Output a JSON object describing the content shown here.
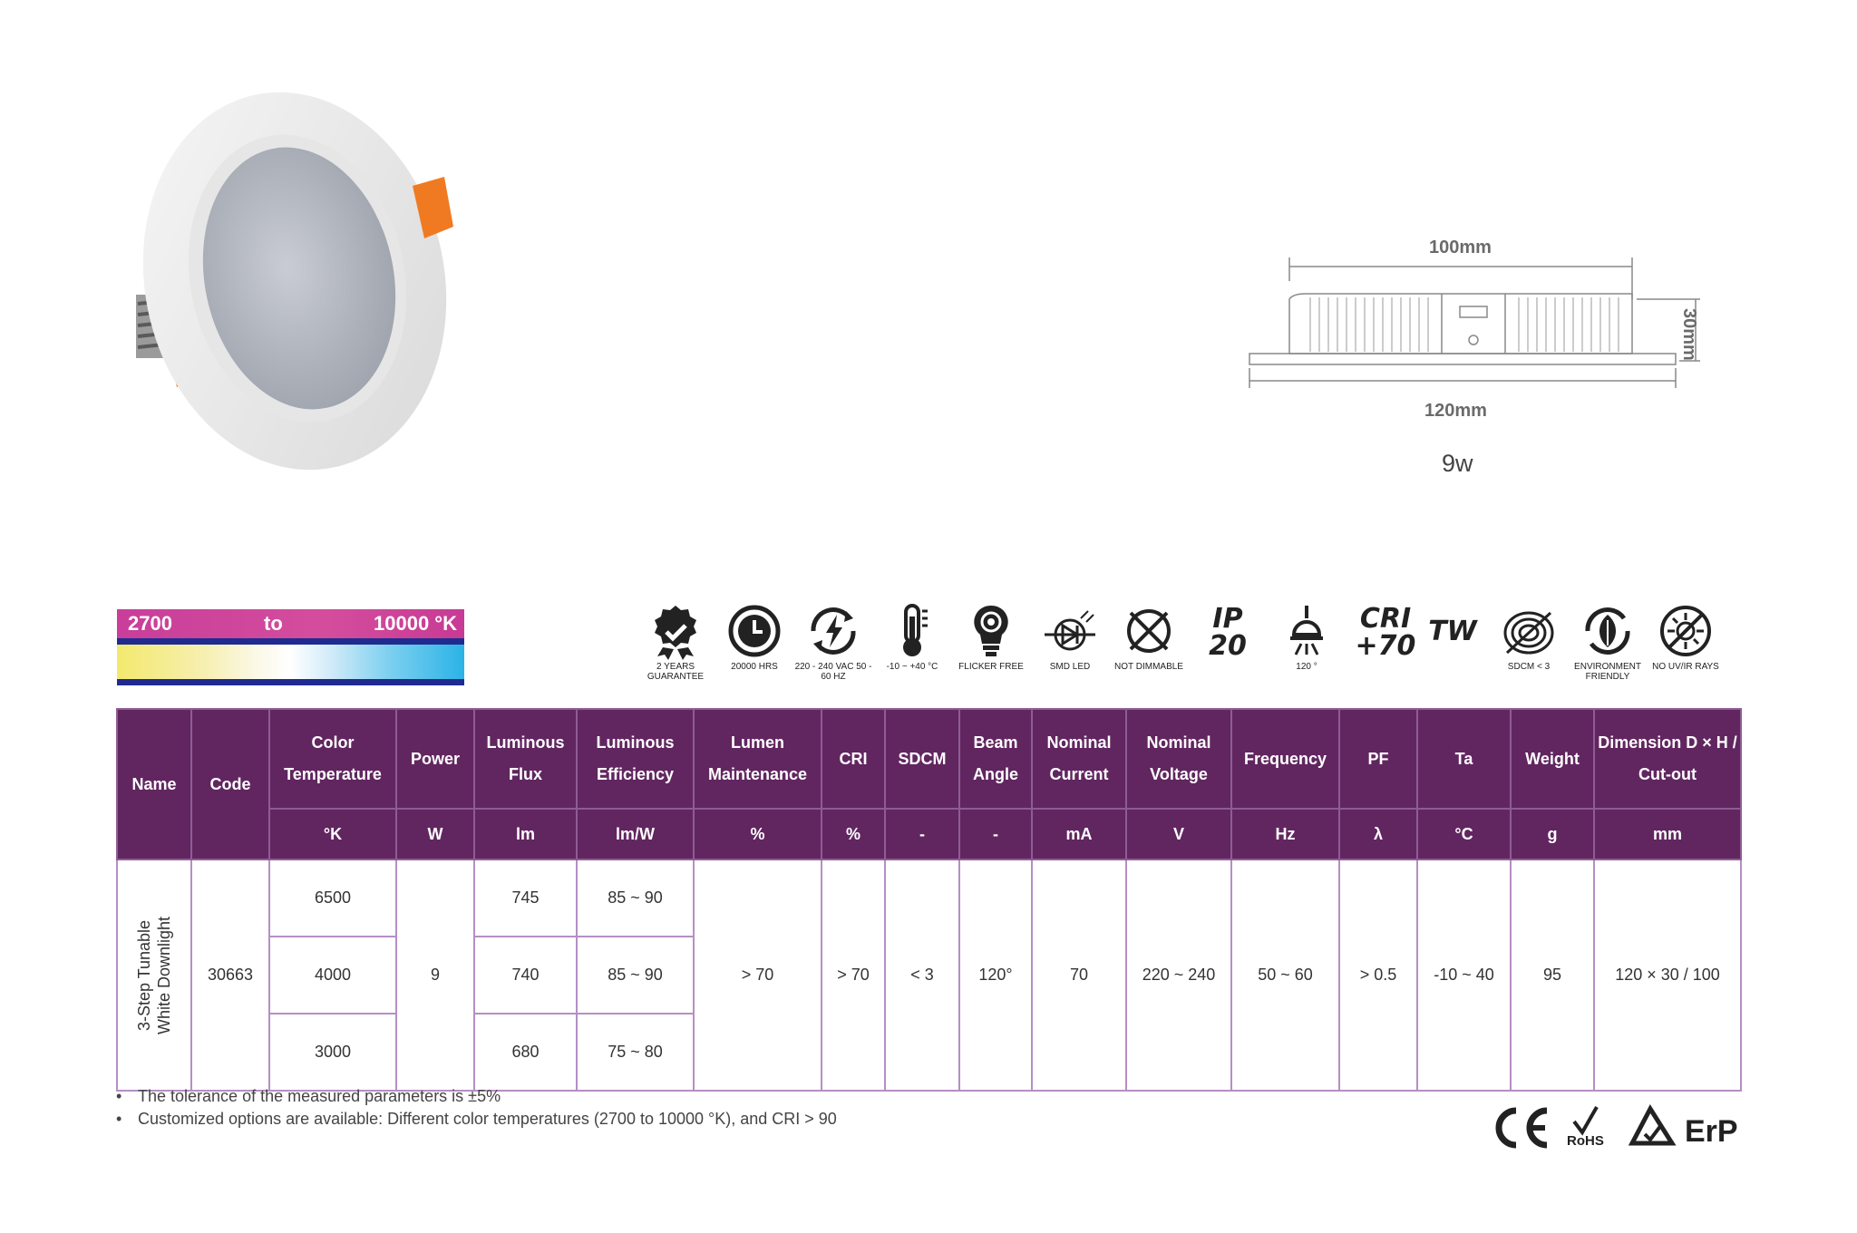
{
  "drawing": {
    "width_top": "100mm",
    "height": "30mm",
    "width_bottom": "120mm",
    "wattage": "9w"
  },
  "color_temp_bar": {
    "low": "2700",
    "to": "to",
    "high": "10000 °K"
  },
  "features": [
    {
      "icon": "award-badge-icon",
      "caption": "2 YEARS GUARANTEE"
    },
    {
      "icon": "clock-icon",
      "caption": "20000 Hrs"
    },
    {
      "icon": "power-cycle-icon",
      "caption": "220 - 240 VAC 50 - 60 Hz"
    },
    {
      "icon": "thermometer-icon",
      "caption": "-10 ~ +40 °c"
    },
    {
      "icon": "bulb-icon",
      "caption": "FLICKER FREE"
    },
    {
      "icon": "led-diode-icon",
      "caption": "SMD LED"
    },
    {
      "icon": "not-dimmable-icon",
      "caption": "NOT DIMMABLE"
    },
    {
      "icon": "ip-rating-icon",
      "caption": "IP 20"
    },
    {
      "icon": "beam-angle-icon",
      "caption": "120 °"
    },
    {
      "icon": "cri-icon",
      "caption": "CRI +70"
    },
    {
      "icon": "tunable-white-icon",
      "caption": "TW"
    },
    {
      "icon": "sdcm-icon",
      "caption": "SDCM < 3"
    },
    {
      "icon": "eco-leaf-icon",
      "caption": "ENVIRONMENT FRIENDLY"
    },
    {
      "icon": "no-uv-icon",
      "caption": "NO UV/IR RAYS"
    }
  ],
  "table": {
    "headers": [
      "Name",
      "Code",
      "Color Temperature",
      "Power",
      "Luminous Flux",
      "Luminous Efficiency",
      "Lumen Maintenance",
      "CRI",
      "SDCM",
      "Beam Angle",
      "Nominal Current",
      "Nominal Voltage",
      "Frequency",
      "PF",
      "Ta",
      "Weight",
      "Dimension D × H / Cut-out"
    ],
    "units": [
      "°K",
      "W",
      "lm",
      "lm/W",
      "%",
      "%",
      "-",
      "-",
      "mA",
      "V",
      "Hz",
      "λ",
      "°C",
      "g",
      "mm"
    ],
    "name": "3-Step Tunable White Downlight",
    "code": "30663",
    "rows": [
      {
        "cct": "6500",
        "flux": "745",
        "eff": "85 ~ 90"
      },
      {
        "cct": "4000",
        "flux": "740",
        "eff": "85 ~ 90"
      },
      {
        "cct": "3000",
        "flux": "680",
        "eff": "75 ~ 80"
      }
    ],
    "power": "9",
    "lumen_maintenance": "> 70",
    "cri": "> 70",
    "sdcm": "< 3",
    "beam_angle": "120°",
    "current": "70",
    "voltage": "220 ~ 240",
    "frequency": "50 ~ 60",
    "pf": "> 0.5",
    "ta": "-10 ~ 40",
    "weight": "95",
    "dimension": "120 × 30 / 100"
  },
  "notes": [
    "The tolerance of the measured parameters is ±5%",
    "Customized options are available: Different color temperatures (2700 to 10000 °K), and CRI > 90"
  ],
  "certifications": [
    "CE",
    "RoHS",
    "EAC-triangle",
    "ErP"
  ]
}
